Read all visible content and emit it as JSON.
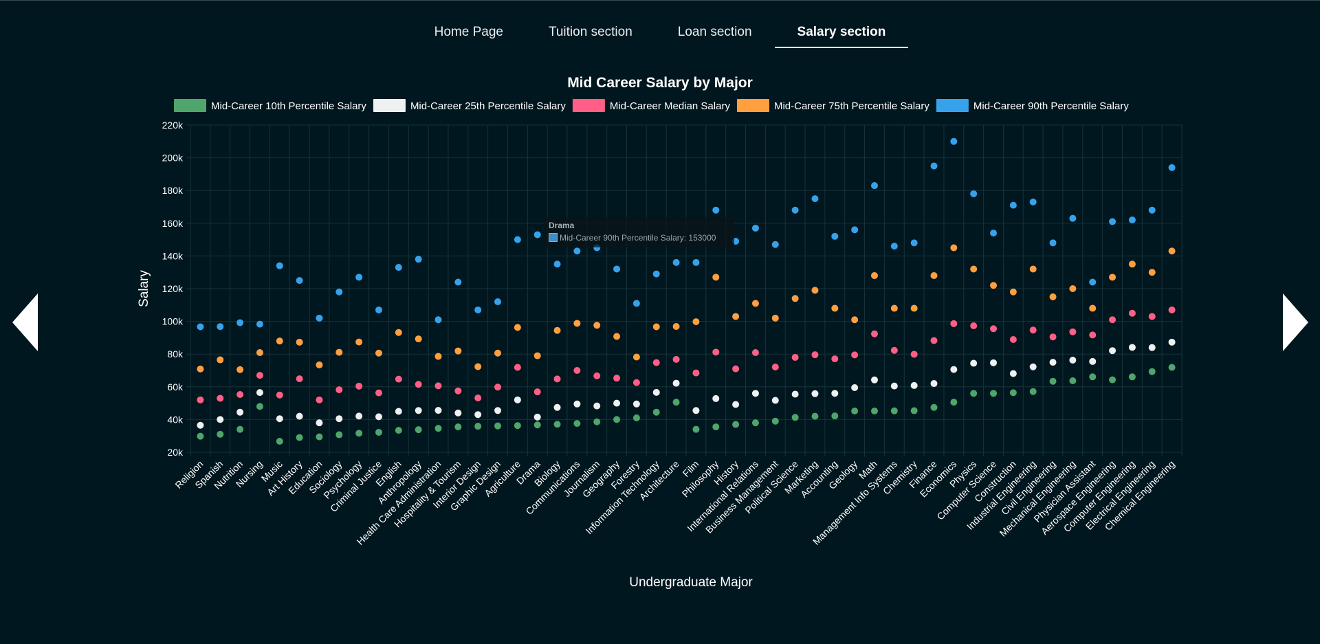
{
  "nav": {
    "items": [
      {
        "label": "Home Page",
        "active": false
      },
      {
        "label": "Tuition section",
        "active": false
      },
      {
        "label": "Loan section",
        "active": false
      },
      {
        "label": "Salary section",
        "active": true
      }
    ]
  },
  "arrows": {
    "left": "chevron-left-icon",
    "right": "chevron-right-icon"
  },
  "tooltip": {
    "title": "Drama",
    "line": "Mid-Career 90th Percentile Salary: 153000"
  },
  "chart_data": {
    "type": "scatter",
    "title": "Mid Career Salary by Major",
    "xlabel": "Undergraduate Major",
    "ylabel": "Salary",
    "ylim": [
      20000,
      220000
    ],
    "yticks": [
      20000,
      40000,
      60000,
      80000,
      100000,
      120000,
      140000,
      160000,
      180000,
      200000,
      220000
    ],
    "ytick_labels": [
      "20k",
      "40k",
      "60k",
      "80k",
      "100k",
      "120k",
      "140k",
      "160k",
      "180k",
      "200k",
      "220k"
    ],
    "grid": true,
    "legend_position": "top",
    "categories": [
      "Religion",
      "Spanish",
      "Nutrition",
      "Nursing",
      "Music",
      "Art History",
      "Education",
      "Sociology",
      "Psychology",
      "Criminal Justice",
      "English",
      "Anthropology",
      "Health Care Administration",
      "Hospitality & Tourism",
      "Interior Design",
      "Graphic Design",
      "Agriculture",
      "Drama",
      "Biology",
      "Communications",
      "Journalism",
      "Geography",
      "Forestry",
      "Information Technology",
      "Architecture",
      "Film",
      "Philosophy",
      "History",
      "International Relations",
      "Business Management",
      "Political Science",
      "Marketing",
      "Accounting",
      "Geology",
      "Math",
      "Management Info Systems",
      "Chemistry",
      "Finance",
      "Economics",
      "Physics",
      "Computer Science",
      "Construction",
      "Industrial Engineering",
      "Civil Engineering",
      "Mechanical Engineering",
      "Physician Assistant",
      "Aerospace Engineering",
      "Computer Engineering",
      "Electrical Engineering",
      "Chemical Engineering"
    ],
    "series": [
      {
        "name": "Mid-Career 10th Percentile Salary",
        "color": "#4fa56c",
        "values": [
          29800,
          31000,
          34000,
          48000,
          26700,
          29000,
          29400,
          30700,
          31600,
          32200,
          33400,
          33800,
          34600,
          35500,
          35900,
          36100,
          36300,
          36700,
          37100,
          37600,
          38600,
          40000,
          41000,
          44500,
          50600,
          34000,
          35500,
          37000,
          38000,
          39000,
          41300,
          42000,
          42200,
          45200,
          45200,
          45300,
          45400,
          47400,
          50600,
          56000,
          56000,
          56400,
          57100,
          63400,
          63700,
          66100,
          64300,
          66100,
          69300,
          71900
        ]
      },
      {
        "name": "Mid-Career 25th Percentile Salary",
        "color": "#eef0f2",
        "values": [
          36500,
          40000,
          44500,
          56500,
          40500,
          42000,
          38000,
          40500,
          42100,
          41700,
          45000,
          45500,
          45600,
          44000,
          43000,
          45500,
          52000,
          41500,
          47400,
          49500,
          48300,
          50000,
          49500,
          56600,
          62200,
          45500,
          52800,
          49200,
          56000,
          51700,
          55500,
          55800,
          56000,
          59500,
          64200,
          60500,
          60800,
          62000,
          70600,
          74400,
          74700,
          68100,
          72200,
          75000,
          76300,
          75500,
          82100,
          84100,
          84000,
          87300
        ]
      },
      {
        "name": "Mid-Career Median Salary",
        "color": "#ff5f86",
        "values": [
          52000,
          53000,
          55300,
          67000,
          55000,
          64900,
          52000,
          58200,
          60400,
          56300,
          64700,
          61500,
          60600,
          57500,
          53200,
          59800,
          71900,
          56900,
          64800,
          70000,
          66700,
          65300,
          62600,
          74800,
          76800,
          68500,
          81200,
          71000,
          80900,
          72100,
          78000,
          79600,
          77100,
          79500,
          92400,
          82300,
          79900,
          88300,
          98600,
          97300,
          95500,
          88900,
          94700,
          90500,
          93600,
          91700,
          101000,
          105000,
          103000,
          107000
        ]
      },
      {
        "name": "Mid-Career 75th Percentile Salary",
        "color": "#ff9f40",
        "values": [
          70900,
          76500,
          70500,
          80900,
          88000,
          87300,
          73400,
          81100,
          87400,
          80600,
          93200,
          89300,
          78600,
          81900,
          72300,
          80600,
          96300,
          79000,
          94500,
          98800,
          97600,
          90800,
          78200,
          96700,
          96900,
          99800,
          127000,
          103000,
          111000,
          102000,
          114000,
          119000,
          108000,
          101000,
          128000,
          108000,
          108000,
          128000,
          145000,
          132000,
          122000,
          118000,
          132000,
          115000,
          120000,
          108000,
          127000,
          135000,
          130000,
          143000
        ]
      },
      {
        "name": "Mid-Career 90th Percentile Salary",
        "color": "#36a2eb",
        "values": [
          96700,
          96800,
          99200,
          98300,
          134000,
          125000,
          102000,
          118000,
          127000,
          107000,
          133000,
          138000,
          101000,
          124000,
          107000,
          112000,
          150000,
          153000,
          135000,
          143000,
          145000,
          132000,
          111000,
          129000,
          136000,
          136000,
          168000,
          149000,
          157000,
          147000,
          168000,
          175000,
          152000,
          156000,
          183000,
          146000,
          148000,
          195000,
          210000,
          178000,
          154000,
          171000,
          173000,
          148000,
          163000,
          124000,
          161000,
          162000,
          168000,
          194000
        ]
      }
    ]
  }
}
